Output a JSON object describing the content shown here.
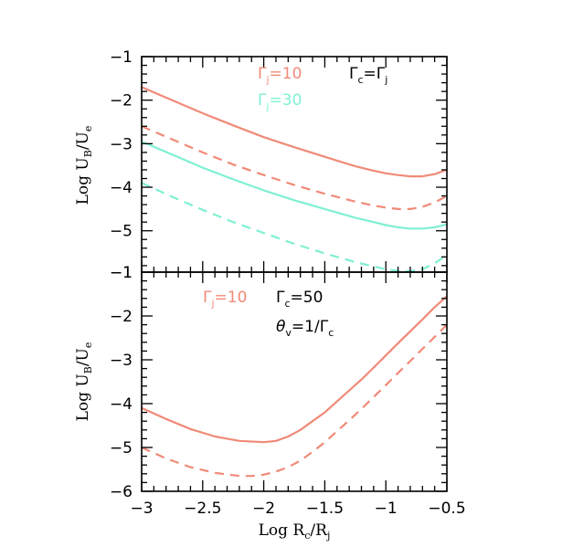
{
  "chart_data": [
    {
      "type": "line",
      "xlabel": "",
      "ylabel": "Log  U_B/U_e",
      "xlim": [
        -3,
        -0.5
      ],
      "ylim": [
        -6,
        -1
      ],
      "y_ticks": [
        -1,
        -2,
        -3,
        -4,
        -5
      ],
      "colors": {
        "salmon": "#f08a78",
        "aqua": "#7ff0d4"
      },
      "annotations": [
        {
          "text": "Γj=10",
          "main": "Γ",
          "sub": "j",
          "rest": "=10",
          "color": "#f08a78"
        },
        {
          "text": "Γc=Γj",
          "main": "Γ",
          "sub": "c",
          "rest": "=Γ",
          "sub2": "j",
          "color": "#000000"
        },
        {
          "text": "Γj=30",
          "main": "Γ",
          "sub": "j",
          "rest": "=30",
          "color": "#7ff0d4"
        }
      ],
      "series": [
        {
          "color": "#f08a78",
          "style": "solid",
          "x": [
            -3.0,
            -2.75,
            -2.5,
            -2.25,
            -2.0,
            -1.75,
            -1.5,
            -1.25,
            -1.1,
            -1.0,
            -0.9,
            -0.8,
            -0.7,
            -0.6,
            -0.5
          ],
          "y": [
            -1.7,
            -2.0,
            -2.3,
            -2.58,
            -2.85,
            -3.08,
            -3.3,
            -3.52,
            -3.62,
            -3.68,
            -3.72,
            -3.75,
            -3.75,
            -3.7,
            -3.6
          ]
        },
        {
          "color": "#f08a78",
          "style": "dashed",
          "x": [
            -3.0,
            -2.75,
            -2.5,
            -2.25,
            -2.0,
            -1.75,
            -1.5,
            -1.25,
            -1.1,
            -1.0,
            -0.9,
            -0.8,
            -0.7,
            -0.6,
            -0.5
          ],
          "y": [
            -2.6,
            -2.9,
            -3.2,
            -3.48,
            -3.72,
            -3.95,
            -4.15,
            -4.33,
            -4.42,
            -4.47,
            -4.5,
            -4.5,
            -4.45,
            -4.35,
            -4.2
          ]
        },
        {
          "color": "#7ff0d4",
          "style": "solid",
          "x": [
            -3.0,
            -2.75,
            -2.5,
            -2.25,
            -2.0,
            -1.75,
            -1.5,
            -1.25,
            -1.1,
            -1.0,
            -0.9,
            -0.8,
            -0.7,
            -0.6,
            -0.5
          ],
          "y": [
            -2.95,
            -3.25,
            -3.55,
            -3.82,
            -4.07,
            -4.3,
            -4.5,
            -4.7,
            -4.8,
            -4.87,
            -4.92,
            -4.95,
            -4.95,
            -4.92,
            -4.85
          ]
        },
        {
          "color": "#7ff0d4",
          "style": "dashed",
          "x": [
            -3.0,
            -2.75,
            -2.5,
            -2.25,
            -2.0,
            -1.75,
            -1.5,
            -1.25,
            -1.1,
            -1.0,
            -0.9,
            -0.8,
            -0.7,
            -0.6,
            -0.5
          ],
          "y": [
            -3.9,
            -4.22,
            -4.52,
            -4.8,
            -5.05,
            -5.3,
            -5.52,
            -5.72,
            -5.82,
            -5.88,
            -5.92,
            -5.93,
            -5.88,
            -5.75,
            -5.55
          ]
        }
      ]
    },
    {
      "type": "line",
      "xlabel": "Log  R_c/R_j",
      "ylabel": "Log  U_B/U_e",
      "xlim": [
        -3,
        -0.5
      ],
      "ylim": [
        -6,
        -1
      ],
      "x_ticks": [
        -3,
        -2.5,
        -2,
        -1.5,
        -1,
        -0.5
      ],
      "y_ticks": [
        -1,
        -2,
        -3,
        -4,
        -5,
        -6
      ],
      "colors": {
        "salmon": "#f08a78"
      },
      "annotations": [
        {
          "text": "Γj=10",
          "main": "Γ",
          "sub": "j",
          "rest": "=10",
          "color": "#f08a78"
        },
        {
          "text": "Γc=50",
          "main": "Γ",
          "sub": "c",
          "rest": "=50",
          "color": "#000000"
        },
        {
          "text": "θv=1/Γc",
          "main": "θ",
          "sub": "v",
          "rest": "=1/Γ",
          "sub2": "c",
          "color": "#000000"
        }
      ],
      "series": [
        {
          "color": "#f08a78",
          "style": "solid",
          "x": [
            -3.0,
            -2.8,
            -2.6,
            -2.4,
            -2.2,
            -2.0,
            -1.9,
            -1.8,
            -1.7,
            -1.6,
            -1.5,
            -1.4,
            -1.3,
            -1.2,
            -1.1,
            -1.0,
            -0.9,
            -0.8,
            -0.7,
            -0.6,
            -0.5
          ],
          "y": [
            -4.1,
            -4.35,
            -4.58,
            -4.75,
            -4.85,
            -4.88,
            -4.85,
            -4.75,
            -4.6,
            -4.4,
            -4.2,
            -3.95,
            -3.7,
            -3.45,
            -3.18,
            -2.9,
            -2.62,
            -2.35,
            -2.08,
            -1.8,
            -1.55
          ]
        },
        {
          "color": "#f08a78",
          "style": "dashed",
          "x": [
            -3.0,
            -2.8,
            -2.6,
            -2.4,
            -2.2,
            -2.1,
            -2.0,
            -1.9,
            -1.8,
            -1.7,
            -1.6,
            -1.5,
            -1.4,
            -1.3,
            -1.2,
            -1.1,
            -1.0,
            -0.9,
            -0.8,
            -0.7,
            -0.6,
            -0.5
          ],
          "y": [
            -5.0,
            -5.25,
            -5.45,
            -5.58,
            -5.65,
            -5.65,
            -5.62,
            -5.55,
            -5.45,
            -5.3,
            -5.1,
            -4.88,
            -4.63,
            -4.38,
            -4.12,
            -3.85,
            -3.58,
            -3.3,
            -3.03,
            -2.75,
            -2.48,
            -2.2
          ]
        }
      ]
    }
  ]
}
